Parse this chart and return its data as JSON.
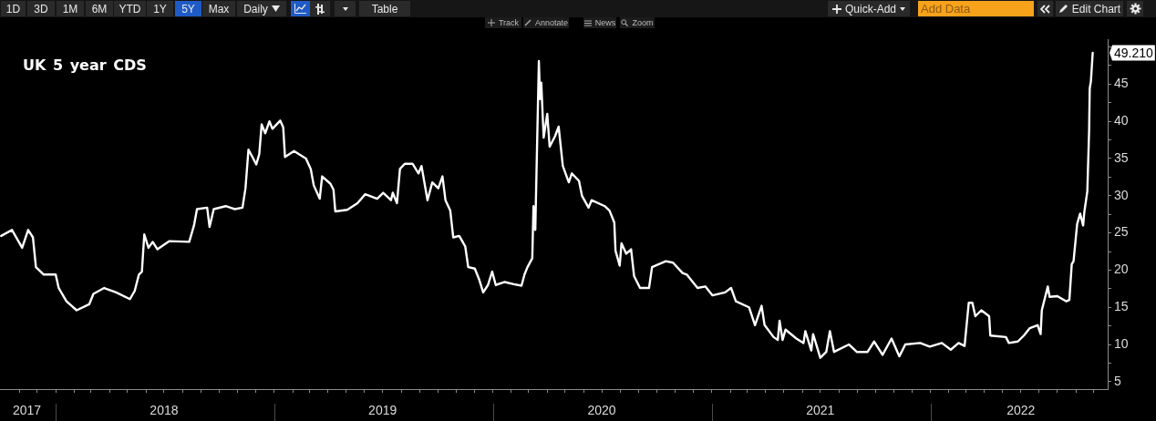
{
  "chart_data": {
    "type": "line",
    "title": "UK 5 year CDS",
    "annotations": [
      "1D",
      "3D",
      "1M",
      "6M",
      "YTD",
      "1Y",
      "5Y",
      "Max",
      "Daily",
      "Table",
      "Quick-Add",
      "Add Data",
      "Edit Chart",
      "Track",
      "Annotate",
      "News",
      "Zoom",
      {
        "text": "49.210",
        "x": "2022-09-29",
        "y": 49.21
      }
    ],
    "x": [
      "2017-10-02",
      "2017-10-20",
      "2017-11-06",
      "2017-11-16",
      "2017-11-24",
      "2017-11-29",
      "2017-12-12",
      "2018-01-01",
      "2018-01-06",
      "2018-01-19",
      "2018-02-05",
      "2018-02-26",
      "2018-03-05",
      "2018-03-23",
      "2018-04-12",
      "2018-05-05",
      "2018-05-13",
      "2018-05-20",
      "2018-05-25",
      "2018-05-29",
      "2018-06-05",
      "2018-06-12",
      "2018-06-20",
      "2018-07-10",
      "2018-08-12",
      "2018-08-20",
      "2018-08-25",
      "2018-09-11",
      "2018-09-15",
      "2018-09-22",
      "2018-10-12",
      "2018-10-27",
      "2018-11-09",
      "2018-11-14",
      "2018-11-19",
      "2018-11-27",
      "2018-12-02",
      "2018-12-07",
      "2018-12-11",
      "2018-12-17",
      "2018-12-24",
      "2018-12-29",
      "2019-01-11",
      "2019-01-16",
      "2019-01-19",
      "2019-02-03",
      "2019-02-23",
      "2019-03-03",
      "2019-03-08",
      "2019-03-18",
      "2019-03-22",
      "2019-04-05",
      "2019-04-10",
      "2019-04-13",
      "2019-05-03",
      "2019-05-20",
      "2019-06-02",
      "2019-06-22",
      "2019-07-02",
      "2019-07-15",
      "2019-07-18",
      "2019-07-25",
      "2019-07-30",
      "2019-08-07",
      "2019-08-20",
      "2019-08-30",
      "2019-09-04",
      "2019-09-14",
      "2019-09-22",
      "2019-10-02",
      "2019-10-09",
      "2019-10-14",
      "2019-10-22",
      "2019-10-27",
      "2019-11-06",
      "2019-11-16",
      "2019-11-21",
      "2019-12-02",
      "2019-12-09",
      "2019-12-16",
      "2019-12-24",
      "2019-12-31",
      "2020-01-06",
      "2020-01-21",
      "2020-02-05",
      "2020-02-18",
      "2020-02-23",
      "2020-02-28",
      "2020-03-07",
      "2020-03-09",
      "2020-03-12",
      "2020-03-18",
      "2020-03-20",
      "2020-03-22",
      "2020-03-26",
      "2020-04-01",
      "2020-04-05",
      "2020-04-14",
      "2020-04-20",
      "2020-04-27",
      "2020-05-07",
      "2020-05-12",
      "2020-05-24",
      "2020-05-29",
      "2020-06-09",
      "2020-06-14",
      "2020-07-06",
      "2020-07-14",
      "2020-07-22",
      "2020-07-24",
      "2020-07-31",
      "2020-08-03",
      "2020-08-11",
      "2020-08-19",
      "2020-08-24",
      "2020-09-03",
      "2020-09-18",
      "2020-09-23",
      "2020-10-16",
      "2020-10-28",
      "2020-11-13",
      "2020-11-20",
      "2020-12-08",
      "2020-12-21",
      "2021-01-02",
      "2021-01-23",
      "2021-02-02",
      "2021-02-10",
      "2021-03-04",
      "2021-03-14",
      "2021-03-25",
      "2021-03-30",
      "2021-04-14",
      "2021-04-21",
      "2021-04-24",
      "2021-04-29",
      "2021-05-04",
      "2021-05-22",
      "2021-06-03",
      "2021-06-06",
      "2021-06-16",
      "2021-06-19",
      "2021-07-01",
      "2021-07-11",
      "2021-07-17",
      "2021-07-24",
      "2021-08-18",
      "2021-08-31",
      "2021-09-18",
      "2021-09-29",
      "2021-10-13",
      "2021-10-28",
      "2021-11-10",
      "2021-11-20",
      "2021-12-15",
      "2021-12-31",
      "2022-01-20",
      "2022-02-04",
      "2022-02-17",
      "2022-02-27",
      "2022-03-06",
      "2022-03-12",
      "2022-03-17",
      "2022-03-27",
      "2022-04-09",
      "2022-04-11",
      "2022-05-07",
      "2022-05-12",
      "2022-05-27",
      "2022-06-06",
      "2022-06-16",
      "2022-06-29",
      "2022-07-04",
      "2022-07-06",
      "2022-07-16",
      "2022-07-19",
      "2022-08-01",
      "2022-08-16",
      "2022-08-21",
      "2022-08-25",
      "2022-08-28",
      "2022-09-03",
      "2022-09-08",
      "2022-09-13",
      "2022-09-15",
      "2022-09-20",
      "2022-09-23",
      "2022-09-24",
      "2022-09-26",
      "2022-09-29"
    ],
    "values": [
      24.6,
      25.4,
      23.0,
      25.4,
      24.4,
      20.4,
      19.4,
      19.4,
      17.6,
      15.8,
      14.6,
      15.4,
      16.8,
      17.6,
      17.0,
      16.1,
      17.2,
      19.4,
      19.8,
      24.8,
      23.0,
      23.8,
      22.8,
      23.9,
      23.8,
      26.0,
      28.2,
      28.4,
      25.8,
      28.2,
      28.6,
      28.2,
      28.4,
      31.0,
      36.2,
      35.0,
      34.2,
      35.6,
      39.6,
      38.4,
      40.0,
      39.0,
      40.1,
      39.2,
      35.2,
      36.0,
      35.0,
      33.6,
      31.4,
      29.6,
      32.6,
      31.6,
      30.8,
      27.9,
      28.1,
      29.0,
      30.2,
      29.6,
      30.4,
      29.4,
      30.4,
      29.0,
      33.6,
      34.3,
      34.3,
      33.0,
      34.0,
      29.4,
      31.8,
      31.0,
      32.6,
      29.4,
      28.0,
      24.4,
      24.6,
      23.2,
      20.4,
      20.2,
      18.8,
      17.0,
      18.0,
      19.8,
      18.0,
      18.4,
      18.1,
      17.9,
      19.4,
      20.4,
      21.6,
      28.6,
      25.4,
      48.1,
      43.0,
      45.2,
      37.8,
      41.0,
      36.6,
      38.0,
      39.3,
      34.0,
      31.8,
      33.0,
      32.0,
      30.0,
      28.4,
      29.4,
      28.6,
      28.0,
      26.4,
      22.6,
      20.6,
      23.6,
      22.2,
      22.8,
      19.2,
      17.6,
      17.6,
      20.4,
      21.2,
      21.0,
      19.6,
      19.4,
      17.6,
      17.8,
      16.6,
      17.0,
      17.6,
      15.8,
      15.0,
      12.6,
      15.2,
      12.6,
      11.0,
      10.6,
      13.2,
      10.6,
      12.0,
      10.8,
      10.2,
      11.8,
      9.2,
      11.4,
      8.2,
      9.0,
      11.8,
      9.0,
      10.0,
      9.0,
      9.0,
      10.4,
      8.6,
      10.8,
      8.4,
      10.0,
      10.2,
      9.7,
      10.2,
      9.3,
      10.2,
      9.8,
      15.6,
      15.6,
      13.8,
      14.6,
      13.8,
      11.2,
      11.0,
      10.2,
      10.4,
      11.2,
      12.2,
      12.6,
      11.4,
      14.6,
      17.8,
      16.4,
      16.5,
      15.8,
      16.0,
      20.8,
      21.2,
      26.2,
      27.6,
      26.0,
      27.8,
      30.6,
      38.8,
      44.4,
      45.4,
      49.21
    ],
    "color": "#ffffff",
    "line_style": "solid",
    "xlim": [
      "2017-09-30",
      "2022-10-24"
    ],
    "ylim": [
      4,
      51
    ],
    "xticks": [
      {
        "value": "2017-11-01",
        "label": null
      },
      {
        "value": "2017-11-14",
        "label": "2017"
      },
      {
        "value": "2017-12-01",
        "label": null
      },
      {
        "value": "2018-01-01",
        "label": null
      },
      {
        "value": "2018-02-01",
        "label": null
      },
      {
        "value": "2018-03-01",
        "label": null
      },
      {
        "value": "2018-04-01",
        "label": null
      },
      {
        "value": "2018-05-01",
        "label": null
      },
      {
        "value": "2018-06-01",
        "label": null
      },
      {
        "value": "2018-07-01",
        "label": "2018"
      },
      {
        "value": "2018-08-01",
        "label": null
      },
      {
        "value": "2018-09-01",
        "label": null
      },
      {
        "value": "2018-10-01",
        "label": null
      },
      {
        "value": "2018-11-01",
        "label": null
      },
      {
        "value": "2018-12-01",
        "label": null
      },
      {
        "value": "2019-01-01",
        "label": null
      },
      {
        "value": "2019-02-01",
        "label": null
      },
      {
        "value": "2019-03-01",
        "label": null
      },
      {
        "value": "2019-04-01",
        "label": null
      },
      {
        "value": "2019-05-01",
        "label": null
      },
      {
        "value": "2019-06-01",
        "label": null
      },
      {
        "value": "2019-07-01",
        "label": "2019"
      },
      {
        "value": "2019-08-01",
        "label": null
      },
      {
        "value": "2019-09-01",
        "label": null
      },
      {
        "value": "2019-10-01",
        "label": null
      },
      {
        "value": "2019-11-01",
        "label": null
      },
      {
        "value": "2019-12-01",
        "label": null
      },
      {
        "value": "2020-01-01",
        "label": null
      },
      {
        "value": "2020-02-01",
        "label": null
      },
      {
        "value": "2020-03-01",
        "label": null
      },
      {
        "value": "2020-04-01",
        "label": null
      },
      {
        "value": "2020-05-01",
        "label": null
      },
      {
        "value": "2020-06-01",
        "label": null
      },
      {
        "value": "2020-07-01",
        "label": "2020"
      },
      {
        "value": "2020-08-01",
        "label": null
      },
      {
        "value": "2020-09-01",
        "label": null
      },
      {
        "value": "2020-10-01",
        "label": null
      },
      {
        "value": "2020-11-01",
        "label": null
      },
      {
        "value": "2020-12-01",
        "label": null
      },
      {
        "value": "2021-01-01",
        "label": null
      },
      {
        "value": "2021-02-01",
        "label": null
      },
      {
        "value": "2021-03-01",
        "label": null
      },
      {
        "value": "2021-04-01",
        "label": null
      },
      {
        "value": "2021-05-01",
        "label": null
      },
      {
        "value": "2021-06-01",
        "label": null
      },
      {
        "value": "2021-07-01",
        "label": "2021"
      },
      {
        "value": "2021-08-01",
        "label": null
      },
      {
        "value": "2021-09-01",
        "label": null
      },
      {
        "value": "2021-10-01",
        "label": null
      },
      {
        "value": "2021-11-01",
        "label": null
      },
      {
        "value": "2021-12-01",
        "label": null
      },
      {
        "value": "2022-01-01",
        "label": null
      },
      {
        "value": "2022-02-01",
        "label": null
      },
      {
        "value": "2022-03-01",
        "label": null
      },
      {
        "value": "2022-04-01",
        "label": null
      },
      {
        "value": "2022-05-01",
        "label": null
      },
      {
        "value": "2022-06-01",
        "label": "2022"
      },
      {
        "value": "2022-07-01",
        "label": null
      },
      {
        "value": "2022-08-01",
        "label": null
      },
      {
        "value": "2022-09-01",
        "label": null
      },
      {
        "value": "2022-10-01",
        "label": null
      }
    ],
    "yticks": [
      5,
      {
        "value": 7.5,
        "label": null
      },
      10,
      {
        "value": 12.5,
        "label": null
      },
      15,
      {
        "value": 17.5,
        "label": null
      },
      20,
      {
        "value": 22.5,
        "label": null
      },
      25,
      {
        "value": 27.5,
        "label": null
      },
      30,
      {
        "value": 32.5,
        "label": null
      },
      35,
      {
        "value": 37.5,
        "label": null
      },
      40,
      {
        "value": 42.5,
        "label": null
      },
      45,
      {
        "value": 47.5,
        "label": null
      },
      {
        "value": 50,
        "label": null
      }
    ]
  }
}
